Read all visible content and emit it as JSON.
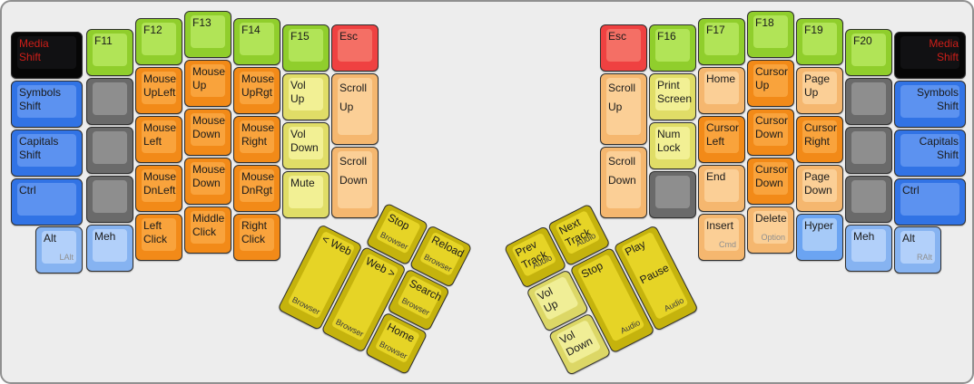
{
  "board": {
    "background_color": "#ededed",
    "border_color": "#909090"
  },
  "palette": {
    "green": {
      "side": "#90ce2c",
      "top": "#b1e457",
      "text": "#1a1a1a"
    },
    "orange": {
      "side": "#f28a18",
      "top": "#f9a33c",
      "text": "#1a1a1a"
    },
    "tan": {
      "side": "#f5b76f",
      "top": "#fbcf96",
      "text": "#1a1a1a"
    },
    "yellow": {
      "side": "#e0dd67",
      "top": "#f2f094",
      "text": "#1a1a1a"
    },
    "gold": {
      "side": "#c5b30d",
      "top": "#e6d426",
      "text": "#1a1a1a"
    },
    "palegold": {
      "side": "#dcd766",
      "top": "#f0ee96",
      "text": "#1a1a1a"
    },
    "blue": {
      "side": "#3173e5",
      "top": "#5c92f0",
      "text": "#1a1a1a"
    },
    "lightblue": {
      "side": "#86b3f1",
      "top": "#b2d0fa",
      "text": "#1a1a1a"
    },
    "hyper": {
      "side": "#6ba4f2",
      "top": "#a6caf8",
      "text": "#1a1a1a"
    },
    "gray": {
      "side": "#6a6a6a",
      "top": "#8e8e8e",
      "text": "#1a1a1a"
    },
    "red": {
      "side": "#ef4141",
      "top": "#f46f65",
      "text": "#1a1a1a"
    },
    "black": {
      "side": "#060606",
      "top": "#111113",
      "text": "#ce1e18"
    }
  },
  "left_main": [
    {
      "name": "media-shift-left",
      "label": "Media\nShift",
      "color": "black"
    },
    {
      "name": "symbols-shift-left",
      "label": "Symbols\nShift",
      "color": "blue"
    },
    {
      "name": "capitals-shift-left",
      "label": "Capitals\nShift",
      "color": "blue"
    },
    {
      "name": "ctrl-left",
      "label": "Ctrl",
      "color": "blue"
    },
    {
      "name": "alt-left",
      "label": "Alt",
      "sub": "LAlt",
      "sub_align": "right",
      "sub_muted": true,
      "color": "lightblue"
    },
    {
      "name": "f11",
      "label": "F11",
      "color": "green"
    },
    {
      "name": "blank",
      "label": "",
      "color": "gray"
    },
    {
      "name": "blank",
      "label": "",
      "color": "gray"
    },
    {
      "name": "blank",
      "label": "",
      "color": "gray"
    },
    {
      "name": "meh-left",
      "label": "Meh",
      "color": "lightblue"
    },
    {
      "name": "f12",
      "label": "F12",
      "color": "green"
    },
    {
      "name": "mouse-upleft",
      "label": "Mouse\nUpLeft",
      "color": "orange"
    },
    {
      "name": "mouse-left",
      "label": "Mouse\nLeft",
      "color": "orange"
    },
    {
      "name": "mouse-dnleft",
      "label": "Mouse\nDnLeft",
      "color": "orange"
    },
    {
      "name": "left-click",
      "label": "Left\nClick",
      "color": "orange"
    },
    {
      "name": "f13",
      "label": "F13",
      "color": "green"
    },
    {
      "name": "mouse-up",
      "label": "Mouse\nUp",
      "color": "orange"
    },
    {
      "name": "mouse-down",
      "label": "Mouse\nDown",
      "color": "orange"
    },
    {
      "name": "mouse-down-2",
      "label": "Mouse\nDown",
      "color": "orange"
    },
    {
      "name": "middle-click",
      "label": "Middle\nClick",
      "color": "orange"
    },
    {
      "name": "f14",
      "label": "F14",
      "color": "green"
    },
    {
      "name": "mouse-uprgt",
      "label": "Mouse\nUpRgt",
      "color": "orange"
    },
    {
      "name": "mouse-right",
      "label": "Mouse\nRight",
      "color": "orange"
    },
    {
      "name": "mouse-dnrgt",
      "label": "Mouse\nDnRgt",
      "color": "orange"
    },
    {
      "name": "right-click",
      "label": "Right\nClick",
      "color": "orange"
    },
    {
      "name": "f15",
      "label": "F15",
      "color": "green"
    },
    {
      "name": "vol-up-left",
      "label": "Vol\nUp",
      "color": "yellow"
    },
    {
      "name": "vol-down-left",
      "label": "Vol\nDown",
      "color": "yellow"
    },
    {
      "name": "mute",
      "label": "Mute",
      "color": "yellow"
    },
    {
      "name": "esc-left",
      "label": "Esc",
      "color": "red"
    },
    {
      "name": "scroll-up-left",
      "label": "Scroll\nUp",
      "color": "tan",
      "tall": true
    },
    {
      "name": "scroll-down-left",
      "label": "Scroll\nDown",
      "color": "tan",
      "tall": true
    }
  ],
  "right_main": [
    {
      "name": "esc-right",
      "label": "Esc",
      "color": "red"
    },
    {
      "name": "scroll-up-right",
      "label": "Scroll\nUp",
      "color": "tan",
      "tall": true
    },
    {
      "name": "scroll-down-right",
      "label": "Scroll\nDown",
      "color": "tan",
      "tall": true
    },
    {
      "name": "f16",
      "label": "F16",
      "color": "green"
    },
    {
      "name": "print-screen",
      "label": "Print\nScreen",
      "color": "yellow"
    },
    {
      "name": "num-lock",
      "label": "Num\nLock",
      "color": "yellow"
    },
    {
      "name": "blank",
      "label": "",
      "color": "gray"
    },
    {
      "name": "f17",
      "label": "F17",
      "color": "green"
    },
    {
      "name": "home",
      "label": "Home",
      "color": "tan"
    },
    {
      "name": "cursor-left",
      "label": "Cursor\nLeft",
      "color": "orange"
    },
    {
      "name": "end",
      "label": "End",
      "color": "tan"
    },
    {
      "name": "insert",
      "label": "Insert",
      "sub": "Cmd",
      "sub_align": "right",
      "sub_muted": true,
      "color": "tan"
    },
    {
      "name": "f18",
      "label": "F18",
      "color": "green"
    },
    {
      "name": "cursor-up",
      "label": "Cursor\nUp",
      "color": "orange"
    },
    {
      "name": "cursor-down",
      "label": "Cursor\nDown",
      "color": "orange"
    },
    {
      "name": "cursor-down-2",
      "label": "Cursor\nDown",
      "color": "orange"
    },
    {
      "name": "delete",
      "label": "Delete",
      "sub": "Option",
      "sub_align": "right",
      "sub_muted": true,
      "color": "tan"
    },
    {
      "name": "f19",
      "label": "F19",
      "color": "green"
    },
    {
      "name": "page-up",
      "label": "Page\nUp",
      "color": "tan"
    },
    {
      "name": "cursor-right",
      "label": "Cursor\nRight",
      "color": "orange"
    },
    {
      "name": "page-down",
      "label": "Page\nDown",
      "color": "tan"
    },
    {
      "name": "hyper",
      "label": "Hyper",
      "color": "hyper"
    },
    {
      "name": "f20",
      "label": "F20",
      "color": "green"
    },
    {
      "name": "blank",
      "label": "",
      "color": "gray"
    },
    {
      "name": "blank",
      "label": "",
      "color": "gray"
    },
    {
      "name": "blank",
      "label": "",
      "color": "gray"
    },
    {
      "name": "meh-right",
      "label": "Meh",
      "color": "lightblue"
    },
    {
      "name": "media-shift-right",
      "label": "Media\nShift",
      "color": "black",
      "align": "right"
    },
    {
      "name": "symbols-shift-right",
      "label": "Symbols\nShift",
      "color": "blue",
      "align": "right"
    },
    {
      "name": "capitals-shift-right",
      "label": "Capitals\nShift",
      "color": "blue",
      "align": "right"
    },
    {
      "name": "ctrl-right",
      "label": "Ctrl",
      "color": "blue"
    },
    {
      "name": "alt-right",
      "label": "Alt",
      "sub": "RAlt",
      "sub_align": "right",
      "sub_muted": true,
      "color": "lightblue"
    }
  ],
  "left_thumb": [
    {
      "name": "browser-stop",
      "label": "Stop",
      "sub": "Browser",
      "sub_align": "left",
      "color": "gold"
    },
    {
      "name": "browser-reload",
      "label": "Reload",
      "sub": "Browser",
      "sub_align": "left",
      "color": "gold"
    },
    {
      "name": "web-back",
      "label": "< Web",
      "sub": "Browser",
      "sub_align": "left",
      "color": "gold"
    },
    {
      "name": "web-forward",
      "label": "Web >",
      "sub": "Browser",
      "sub_align": "left",
      "color": "gold"
    },
    {
      "name": "browser-search",
      "label": "Search",
      "sub": "Browser",
      "sub_align": "left",
      "color": "gold"
    },
    {
      "name": "browser-home",
      "label": "Home",
      "sub": "Browser",
      "sub_align": "left",
      "color": "gold"
    }
  ],
  "right_thumb": [
    {
      "name": "prev-track",
      "label": "Prev\nTrack",
      "sub": "Audio",
      "sub_align": "right",
      "color": "gold"
    },
    {
      "name": "next-track",
      "label": "Next\nTrack",
      "sub": "Audio",
      "sub_align": "right",
      "color": "gold"
    },
    {
      "name": "vol-up-thumb",
      "label": "Vol\nUp",
      "color": "palegold"
    },
    {
      "name": "audio-stop",
      "label": "Stop",
      "sub": "Audio",
      "sub_align": "right",
      "color": "gold"
    },
    {
      "name": "play-pause",
      "label": "Play",
      "label2": "Pause",
      "sub": "Audio",
      "sub_align": "right",
      "color": "gold"
    },
    {
      "name": "vol-down-thumb",
      "label": "Vol\nDown",
      "color": "palegold"
    }
  ]
}
